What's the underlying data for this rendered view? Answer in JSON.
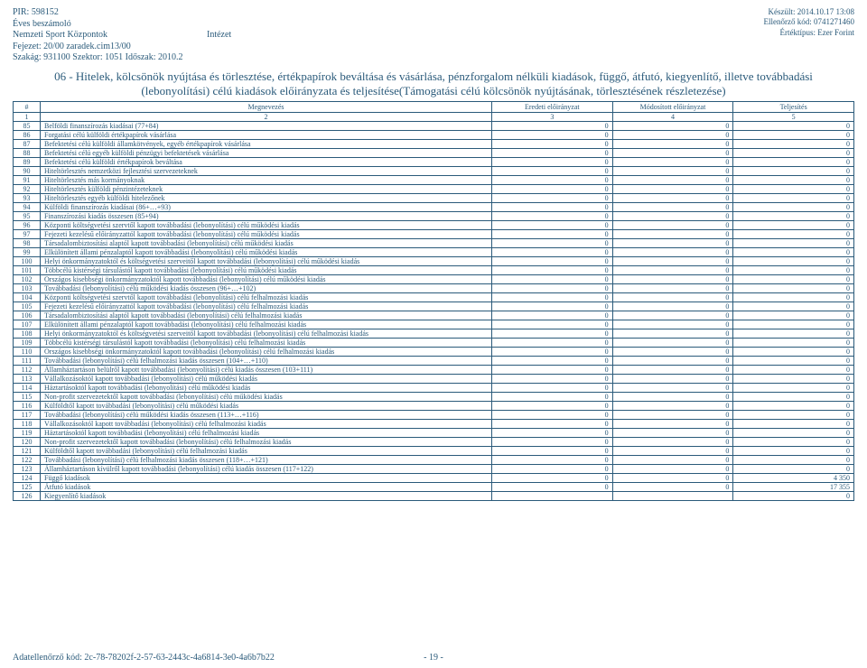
{
  "header": {
    "pir": "PIR: 598152",
    "report": "Éves beszámoló",
    "org": "Nemzeti Sport Központok",
    "org_type": "Intézet",
    "chapter": "Fejezet: 20/00 zaradek.cim13/00",
    "szakag": "Szakág: 931100 Szektor: 1051 Időszak: 2010.2",
    "created": "Készült: 2014.10.17 13:08",
    "checkcode": "Ellenőrző kód: 0741271460",
    "valuetype": "Értéktípus: Ezer Forint"
  },
  "title": "06 - Hitelek, kölcsönök nyújtása és törlesztése, értékpapírok beváltása és vásárlása, pénzforgalom nélküli kiadások, függő, átfutó, kiegyenlítő, illetve továbbadási (lebonyolítási) célú kiadások előirányzata és teljesítése(Támogatási célú kölcsönök nyújtásának, törlesztésének részletezése)",
  "columns": {
    "idx_h": "#",
    "name_h": "Megnevezés",
    "v1_h": "Eredeti előirányzat",
    "v2_h": "Módosított előirányzat",
    "v3_h": "Teljesítés",
    "sub": [
      "1",
      "2",
      "3",
      "4",
      "5"
    ]
  },
  "rows": [
    {
      "n": "85",
      "name": "Belföldi finanszírozás kiadásai (77+84)",
      "v1": "0",
      "v2": "0",
      "v3": "0"
    },
    {
      "n": "86",
      "name": "Forgatási célú külföldi értékpapírok vásárlása",
      "v1": "0",
      "v2": "0",
      "v3": "0"
    },
    {
      "n": "87",
      "name": "Befektetési célú külföldi államkötvények, egyéb értékpapírok vásárlása",
      "v1": "0",
      "v2": "0",
      "v3": "0"
    },
    {
      "n": "88",
      "name": "Befektetési célú egyéb külföldi pénzügyi befektetések vásárlása",
      "v1": "0",
      "v2": "0",
      "v3": "0"
    },
    {
      "n": "89",
      "name": "Befektetési célú külföldi értékpapírok beváltása",
      "v1": "0",
      "v2": "0",
      "v3": "0"
    },
    {
      "n": "90",
      "name": "Hiteltörlesztés nemzetközi fejlesztési szervezeteknek",
      "v1": "0",
      "v2": "0",
      "v3": "0"
    },
    {
      "n": "91",
      "name": "Hiteltörlesztés más kormányoknak",
      "v1": "0",
      "v2": "0",
      "v3": "0"
    },
    {
      "n": "92",
      "name": "Hiteltörlesztés külföldi pénzintézeteknek",
      "v1": "0",
      "v2": "0",
      "v3": "0"
    },
    {
      "n": "93",
      "name": "Hiteltörlesztés egyéb külföldi hitelezőnek",
      "v1": "0",
      "v2": "0",
      "v3": "0"
    },
    {
      "n": "94",
      "name": "Külföldi finanszírozás kiadásai (86+…+93)",
      "v1": "0",
      "v2": "0",
      "v3": "0"
    },
    {
      "n": "95",
      "name": "Finanszírozási kiadás összesen (85+94)",
      "v1": "0",
      "v2": "0",
      "v3": "0"
    },
    {
      "n": "96",
      "name": "Központi költségvetési szervtől kapott továbbadási (lebonyolítási) célú működési kiadás",
      "v1": "0",
      "v2": "0",
      "v3": "0"
    },
    {
      "n": "97",
      "name": "Fejezeti kezelésű előirányzattól kapott továbbadási (lebonyolítási) célú működési kiadás",
      "v1": "0",
      "v2": "0",
      "v3": "0"
    },
    {
      "n": "98",
      "name": "Társadalombiztosítási alaptól kapott továbbadási (lebonyolítási) célú működési kiadás",
      "v1": "0",
      "v2": "0",
      "v3": "0"
    },
    {
      "n": "99",
      "name": "Elkülönített állami pénzalaptól kapott továbbadási (lebonyolítási) célú működési kiadás",
      "v1": "0",
      "v2": "0",
      "v3": "0"
    },
    {
      "n": "100",
      "name": "Helyi önkormányzatoktól és költségvetési szerveitől kapott továbbadási (lebonyolítási) célú működési kiadás",
      "v1": "0",
      "v2": "0",
      "v3": "0"
    },
    {
      "n": "101",
      "name": "Többcélú kistérségi társulástól kapott továbbadási (lebonyolítási) célú működési kiadás",
      "v1": "0",
      "v2": "0",
      "v3": "0"
    },
    {
      "n": "102",
      "name": "Országos kisebbségi önkormányzatoktól kapott továbbadási (lebonyolítási) célú működési kiadás",
      "v1": "0",
      "v2": "0",
      "v3": "0"
    },
    {
      "n": "103",
      "name": "Továbbadási (lebonyolítási) célú működési kiadás összesen (96+…+102)",
      "v1": "0",
      "v2": "0",
      "v3": "0"
    },
    {
      "n": "104",
      "name": "Központi költségvetési szervtől kapott továbbadási (lebonyolítási) célú felhalmozási kiadás",
      "v1": "0",
      "v2": "0",
      "v3": "0"
    },
    {
      "n": "105",
      "name": "Fejezeti kezelésű előirányzattól kapott továbbadási (lebonyolítási) célú felhalmozási kiadás",
      "v1": "0",
      "v2": "0",
      "v3": "0"
    },
    {
      "n": "106",
      "name": "Társadalombiztosítási alaptól kapott továbbadási (lebonyolítási) célú felhalmozási kiadás",
      "v1": "0",
      "v2": "0",
      "v3": "0"
    },
    {
      "n": "107",
      "name": "Elkülönített állami pénzalaptól kapott továbbadási (lebonyolítási) célú felhalmozási kiadás",
      "v1": "0",
      "v2": "0",
      "v3": "0"
    },
    {
      "n": "108",
      "name": "Helyi önkormányzatoktól és költségvetési szerveitől kapott továbbadási (lebonyolítási) célú felhalmozási kiadás",
      "v1": "0",
      "v2": "0",
      "v3": "0"
    },
    {
      "n": "109",
      "name": "Többcélú kistérségi társulástól kapott továbbadási (lebonyolítási) célú felhalmozási kiadás",
      "v1": "0",
      "v2": "0",
      "v3": "0"
    },
    {
      "n": "110",
      "name": "Országos kisebbségi önkormányzatoktól kapott továbbadási (lebonyolítási) célú felhalmozási kiadás",
      "v1": "0",
      "v2": "0",
      "v3": "0"
    },
    {
      "n": "111",
      "name": "Továbbadási (lebonyolítási) célú felhalmozási kiadás összesen (104+…+110)",
      "v1": "0",
      "v2": "0",
      "v3": "0"
    },
    {
      "n": "112",
      "name": "Államháztartáson belülről kapott továbbadási (lebonyolítási) célú kiadás összesen (103+111)",
      "v1": "0",
      "v2": "0",
      "v3": "0"
    },
    {
      "n": "113",
      "name": "Vállalkozásoktól kapott továbbadási (lebonyolítási) célú működési kiadás",
      "v1": "0",
      "v2": "0",
      "v3": "0"
    },
    {
      "n": "114",
      "name": "Háztartásoktól kapott továbbadási (lebonyolítási) célú működési kiadás",
      "v1": "0",
      "v2": "0",
      "v3": "0"
    },
    {
      "n": "115",
      "name": "Non-profit szervezetektől kapott továbbadási (lebonyolítási) célú működési kiadás",
      "v1": "0",
      "v2": "0",
      "v3": "0"
    },
    {
      "n": "116",
      "name": "Külföldtől kapott továbbadási (lebonyolítási) célú működési kiadás",
      "v1": "0",
      "v2": "0",
      "v3": "0"
    },
    {
      "n": "117",
      "name": "Továbbadási (lebonyolítási) célú működési kiadás összesen (113+…+116)",
      "v1": "0",
      "v2": "0",
      "v3": "0"
    },
    {
      "n": "118",
      "name": "Vállalkozásoktól kapott továbbadási (lebonyolítási) célú felhalmozási kiadás",
      "v1": "0",
      "v2": "0",
      "v3": "0"
    },
    {
      "n": "119",
      "name": "Háztartásoktól kapott továbbadási (lebonyolítási) célú felhalmozási kiadás",
      "v1": "0",
      "v2": "0",
      "v3": "0"
    },
    {
      "n": "120",
      "name": "Non-profit szervezetektől kapott továbbadási (lebonyolítási) célú felhalmozási kiadás",
      "v1": "0",
      "v2": "0",
      "v3": "0"
    },
    {
      "n": "121",
      "name": "Külföldtől kapott továbbadási (lebonyolítási) célú felhalmozási kiadás",
      "v1": "0",
      "v2": "0",
      "v3": "0"
    },
    {
      "n": "122",
      "name": "Továbbadási (lebonyolítási) célú felhalmozási kiadás összesen (118+…+121)",
      "v1": "0",
      "v2": "0",
      "v3": "0"
    },
    {
      "n": "123",
      "name": "Államháztartáson kívülről kapott továbbadási (lebonyolítási) célú kiadás összesen (117+122)",
      "v1": "0",
      "v2": "0",
      "v3": "0"
    },
    {
      "n": "124",
      "name": "Függő kiadások",
      "v1": "0",
      "v2": "0",
      "v3": "4 350"
    },
    {
      "n": "125",
      "name": "Átfutó kiadások",
      "v1": "0",
      "v2": "0",
      "v3": "17 355"
    },
    {
      "n": "126",
      "name": "Kiegyenlítő kiadások",
      "v1": "",
      "v2": "",
      "v3": "0"
    }
  ],
  "footer": {
    "check": "Adatellenőrző kód: 2c-78-78202f-2-57-63-2443c-4a6814-3e0-4a6b7b22",
    "page": "- 19 -"
  }
}
